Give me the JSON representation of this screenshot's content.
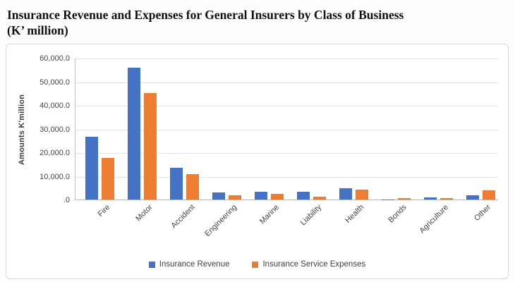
{
  "title": {
    "line1": "Insurance Revenue and Expenses for General Insurers by Class of Business",
    "line2": "(K’ million)"
  },
  "chart_data": {
    "type": "bar",
    "title": "Insurance Revenue and Expenses for General Insurers by Class of Business (K' million)",
    "xlabel": "",
    "ylabel": "Amounts K'million",
    "ylim": [
      0,
      60000
    ],
    "ytick_step": 10000,
    "ytick_labels": [
      "60,000.0",
      "50,000.0",
      "40,000.0",
      "30,000.0",
      "20,000.0",
      "10,000.0",
      ".0"
    ],
    "grid": true,
    "legend_position": "bottom",
    "categories": [
      "Fire",
      "Motor",
      "Accident",
      "Engineering",
      "Marine",
      "Liability",
      "Health",
      "Bonds",
      "Agriculture",
      "Other"
    ],
    "series": [
      {
        "name": "Insurance Revenue",
        "color": "#4472C4",
        "values": [
          26500,
          55800,
          13300,
          3100,
          3400,
          3200,
          4800,
          100,
          1000,
          1800
        ]
      },
      {
        "name": "Insurance Service Expenses",
        "color": "#ED7D31",
        "values": [
          17600,
          45100,
          10800,
          1900,
          2300,
          1300,
          4300,
          700,
          500,
          3800
        ]
      }
    ]
  }
}
